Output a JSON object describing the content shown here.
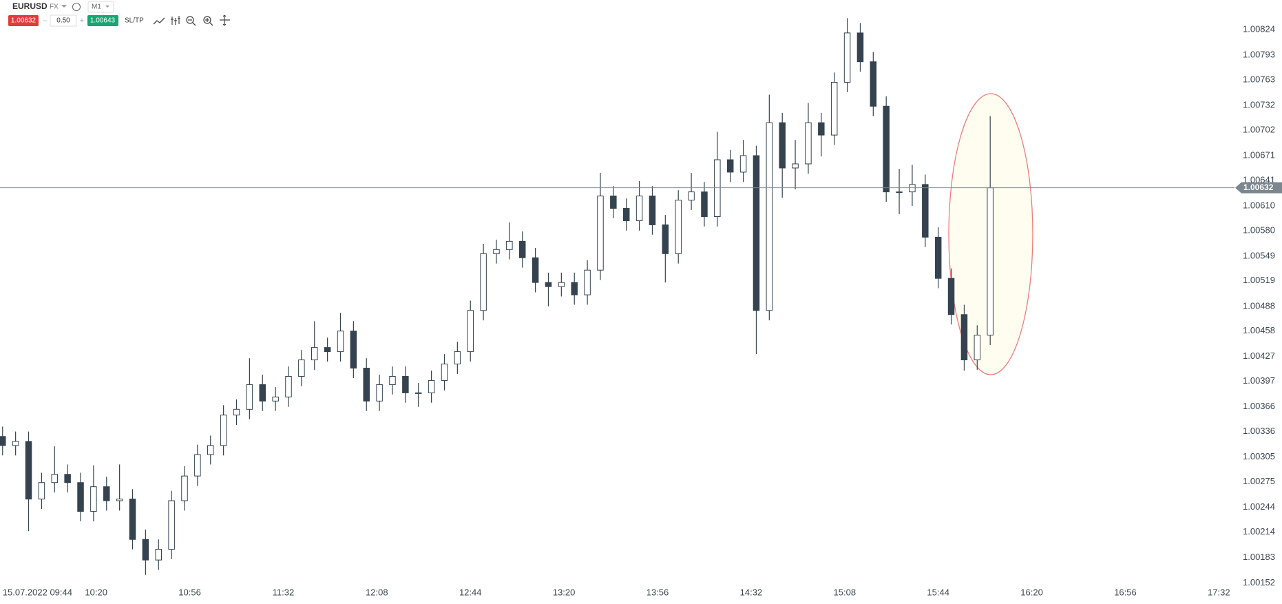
{
  "toolbar": {
    "symbol": "EURUSD",
    "market": "FX",
    "timeframe": "M1",
    "sell_price": "1.00632",
    "volume": "0.50",
    "buy_price": "1.00643",
    "sltp": "SL/TP"
  },
  "chart_data": {
    "type": "candlestick",
    "color": "#34434f",
    "x": [
      584,
      589,
      594,
      599,
      604,
      609,
      614,
      619,
      624,
      629,
      634,
      639,
      644,
      649,
      654,
      659,
      664,
      669,
      674,
      679,
      684,
      689,
      694,
      699,
      704,
      709,
      714,
      719,
      724,
      729,
      734,
      739,
      744,
      749,
      754,
      759,
      764,
      769,
      774,
      779,
      784,
      789,
      794,
      799,
      804,
      809,
      814,
      819,
      824,
      829,
      834,
      839,
      844,
      849,
      854,
      859,
      864,
      869,
      874,
      879,
      884,
      889,
      894,
      899,
      904,
      909,
      914,
      919,
      924,
      929,
      934,
      939,
      944,
      949,
      954,
      959,
      964
    ],
    "open": [
      1.0033,
      1.00319,
      1.00324,
      1.00254,
      1.00274,
      1.00284,
      1.00274,
      1.00239,
      1.00269,
      1.00252,
      1.00254,
      1.00205,
      1.0018,
      1.00193,
      1.00252,
      1.00282,
      1.00308,
      1.00319,
      1.00356,
      1.00363,
      1.00393,
      1.00373,
      1.00378,
      1.00403,
      1.00423,
      1.00438,
      1.00433,
      1.00458,
      1.00413,
      1.00373,
      1.00393,
      1.00403,
      1.00383,
      1.00383,
      1.00398,
      1.00418,
      1.00433,
      1.00483,
      1.00552,
      1.00557,
      1.00567,
      1.00547,
      1.00517,
      1.00512,
      1.00517,
      1.00502,
      1.00532,
      1.00622,
      1.00607,
      1.00592,
      1.00622,
      1.00587,
      1.00552,
      1.00617,
      1.00627,
      1.00597,
      1.00666,
      1.00651,
      1.00671,
      1.00483,
      1.00711,
      1.00656,
      1.00661,
      1.00711,
      1.00696,
      1.0076,
      1.0082,
      1.00785,
      1.00731,
      1.00627,
      1.00627,
      1.00636,
      1.00572,
      1.00522,
      1.00478,
      1.00423,
      1.00453
    ],
    "high": [
      1.00342,
      1.00336,
      1.00336,
      1.00286,
      1.00318,
      1.00296,
      1.00286,
      1.00295,
      1.00281,
      1.00296,
      1.00266,
      1.00217,
      1.00205,
      1.00264,
      1.00294,
      1.0032,
      1.00331,
      1.00368,
      1.00375,
      1.00425,
      1.00405,
      1.0039,
      1.00415,
      1.00435,
      1.0047,
      1.0045,
      1.0048,
      1.0047,
      1.00425,
      1.00405,
      1.00415,
      1.00415,
      1.00395,
      1.0041,
      1.0043,
      1.00445,
      1.00495,
      1.00564,
      1.00569,
      1.0059,
      1.00579,
      1.00559,
      1.00529,
      1.00529,
      1.00529,
      1.00544,
      1.0065,
      1.00634,
      1.00619,
      1.0064,
      1.00634,
      1.00599,
      1.00629,
      1.0065,
      1.00639,
      1.007,
      1.00678,
      1.0069,
      1.00683,
      1.00745,
      1.00723,
      1.0069,
      1.00735,
      1.00723,
      1.00772,
      1.00838,
      1.00832,
      1.00797,
      1.00743,
      1.00655,
      1.0066,
      1.00648,
      1.00584,
      1.00534,
      1.0049,
      1.00465,
      1.00719
    ],
    "low": [
      1.00307,
      1.00307,
      1.00215,
      1.00242,
      1.00262,
      1.00262,
      1.00227,
      1.00227,
      1.0024,
      1.0024,
      1.00193,
      1.00162,
      1.00168,
      1.00181,
      1.0024,
      1.0027,
      1.00296,
      1.00307,
      1.00344,
      1.00351,
      1.00361,
      1.00361,
      1.00366,
      1.00391,
      1.00411,
      1.00421,
      1.00421,
      1.00401,
      1.00361,
      1.00361,
      1.00381,
      1.00371,
      1.00366,
      1.00371,
      1.00386,
      1.00406,
      1.00421,
      1.00471,
      1.0054,
      1.00545,
      1.00535,
      1.00505,
      1.00488,
      1.005,
      1.0049,
      1.0049,
      1.0052,
      1.00595,
      1.0058,
      1.0058,
      1.00575,
      1.00517,
      1.0054,
      1.00605,
      1.00585,
      1.00585,
      1.00639,
      1.00639,
      1.0043,
      1.00471,
      1.0062,
      1.0063,
      1.00649,
      1.0067,
      1.00684,
      1.00748,
      1.00773,
      1.00719,
      1.00615,
      1.006,
      1.0061,
      1.0056,
      1.0051,
      1.00466,
      1.0041,
      1.00411,
      1.00441
    ],
    "close": [
      1.00319,
      1.00324,
      1.00254,
      1.00274,
      1.00284,
      1.00274,
      1.00239,
      1.00269,
      1.00252,
      1.00254,
      1.00205,
      1.0018,
      1.00193,
      1.00252,
      1.00282,
      1.00308,
      1.00319,
      1.00356,
      1.00363,
      1.00393,
      1.00373,
      1.00378,
      1.00403,
      1.00423,
      1.00438,
      1.00433,
      1.00458,
      1.00413,
      1.00373,
      1.00393,
      1.00403,
      1.00383,
      1.00383,
      1.00398,
      1.00418,
      1.00433,
      1.00483,
      1.00552,
      1.00557,
      1.00567,
      1.00547,
      1.00517,
      1.00512,
      1.00517,
      1.00502,
      1.00532,
      1.00622,
      1.00607,
      1.00592,
      1.00622,
      1.00587,
      1.00552,
      1.00617,
      1.00627,
      1.00597,
      1.00666,
      1.00651,
      1.00671,
      1.00483,
      1.00711,
      1.00656,
      1.00661,
      1.00711,
      1.00696,
      1.0076,
      1.0082,
      1.00785,
      1.00731,
      1.00627,
      1.00627,
      1.00636,
      1.00572,
      1.00522,
      1.00478,
      1.00423,
      1.00453,
      1.00632
    ],
    "xlim": [
      583,
      1058
    ],
    "xticks": [
      {
        "value": 584,
        "label": "15.07.2022 09:44"
      },
      {
        "value": 620,
        "label": "10:20"
      },
      {
        "value": 656,
        "label": "10:56"
      },
      {
        "value": 692,
        "label": "11:32"
      },
      {
        "value": 728,
        "label": "12:08"
      },
      {
        "value": 764,
        "label": "12:44"
      },
      {
        "value": 800,
        "label": "13:20"
      },
      {
        "value": 836,
        "label": "13:56"
      },
      {
        "value": 872,
        "label": "14:32"
      },
      {
        "value": 908,
        "label": "15:08"
      },
      {
        "value": 944,
        "label": "15:44"
      },
      {
        "value": 980,
        "label": "16:20"
      },
      {
        "value": 1016,
        "label": "16:56"
      },
      {
        "value": 1052,
        "label": "17:32"
      }
    ],
    "ylim": [
      1.0015,
      1.0086
    ],
    "yticks": [
      1.00824,
      1.00793,
      1.00763,
      1.00732,
      1.00702,
      1.00671,
      1.00641,
      {
        "value": 1.0061,
        "label": "1.00610"
      },
      {
        "value": 1.0058,
        "label": "1.00580"
      },
      1.00549,
      1.00519,
      1.00488,
      1.00458,
      1.00427,
      1.00397,
      1.00366,
      1.00336,
      1.00305,
      1.00275,
      1.00244,
      1.00214,
      1.00183,
      1.00152
    ],
    "current_price": 1.00632,
    "current_price_color": "#7b868e"
  }
}
